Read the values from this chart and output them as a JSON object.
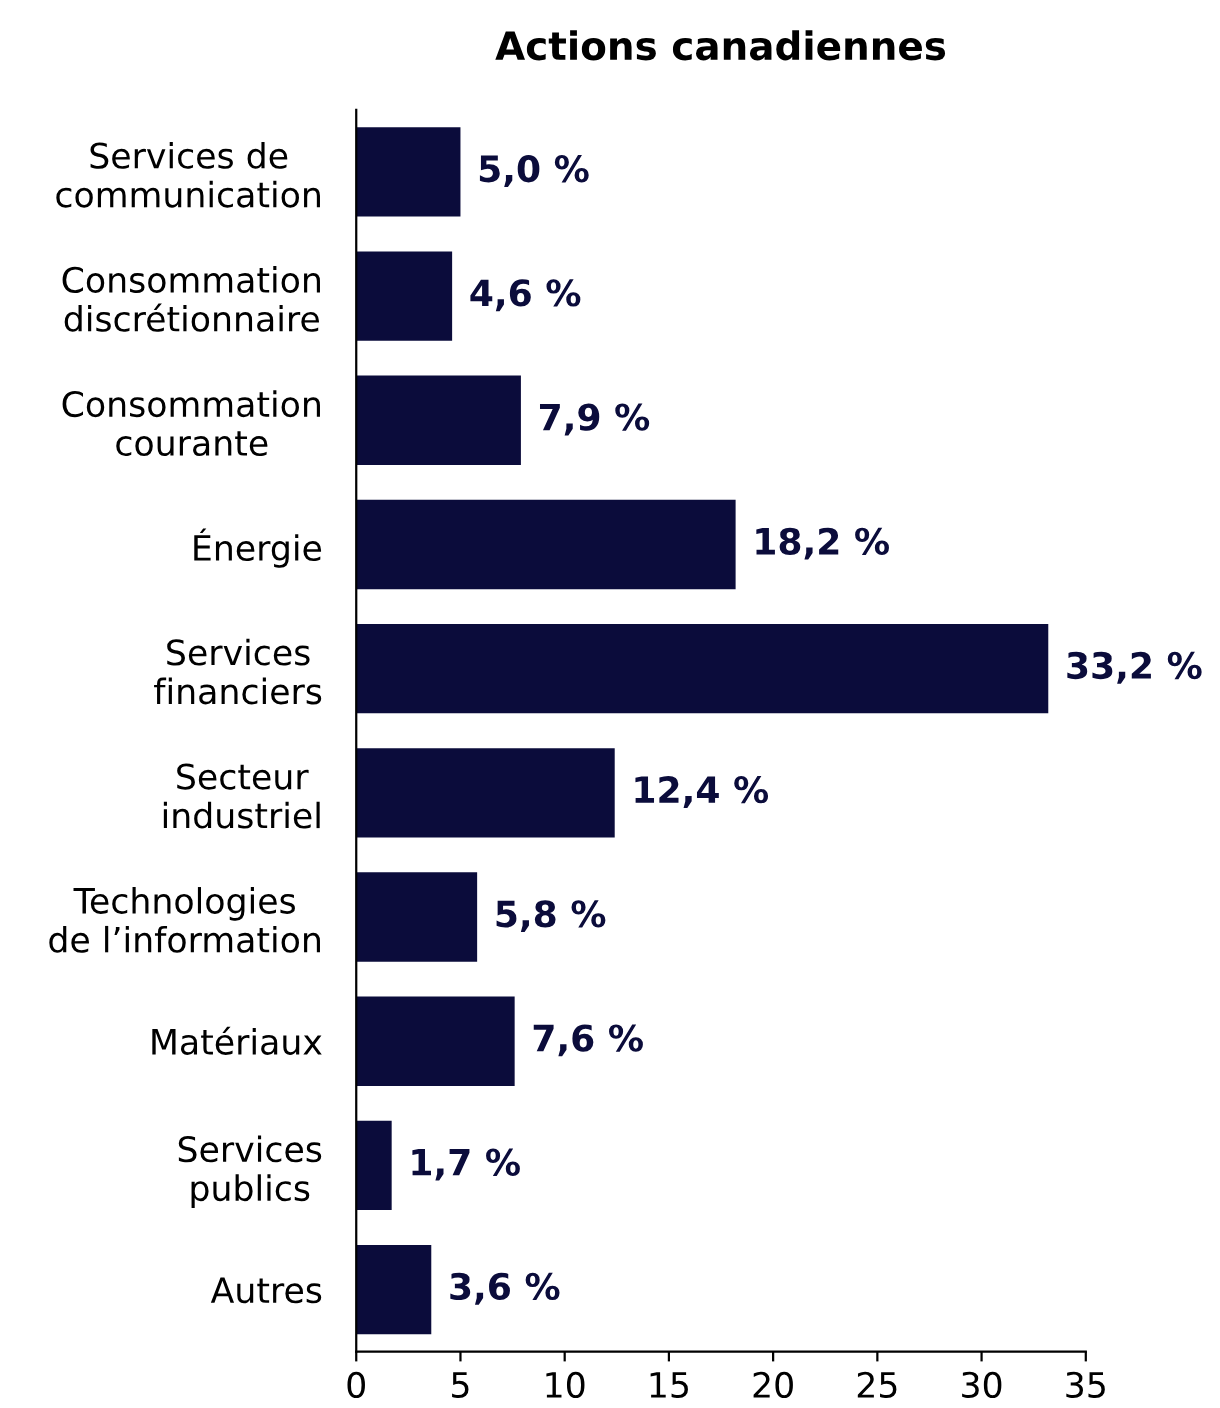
{
  "chart_data": {
    "type": "bar",
    "orientation": "horizontal",
    "title": "Actions canadiennes",
    "categories": [
      "Services de\ncommunication",
      "Consommation\ndiscrétionnaire",
      "Consommation\ncourante",
      "Énergie",
      "Services\nfinanciers",
      "Secteur\nindustriel",
      "Technologies\nde l’information",
      "Matériaux",
      "Services\npublics",
      "Autres"
    ],
    "values": [
      5.0,
      4.6,
      7.9,
      18.2,
      33.2,
      12.4,
      5.8,
      7.6,
      1.7,
      3.6
    ],
    "value_labels": [
      "5,0 %",
      "4,6 %",
      "7,9 %",
      "18,2 %",
      "33,2 %",
      "12,4 %",
      "5,8 %",
      "7,6 %",
      "1,7 %",
      "3,6 %"
    ],
    "color": "#0b0c3b",
    "xlim": [
      0,
      35
    ],
    "xticks": [
      0,
      5,
      10,
      15,
      20,
      25,
      30,
      35
    ],
    "grid": false,
    "legend": false
  }
}
